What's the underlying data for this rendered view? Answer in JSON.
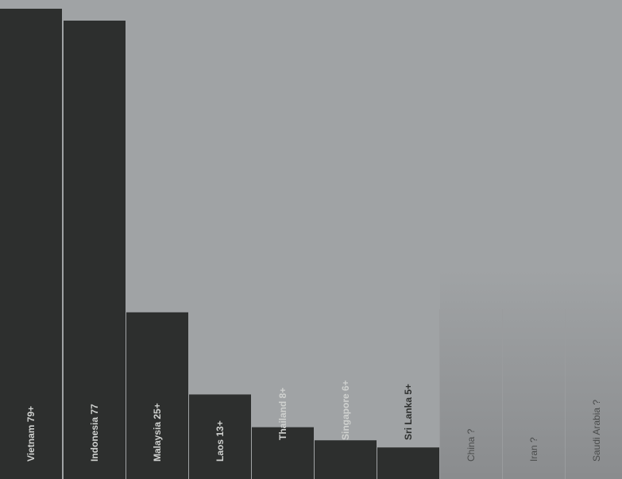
{
  "chart_data": {
    "type": "bar",
    "title": "",
    "xlabel": "",
    "ylabel": "",
    "ylim": [
      0,
      80
    ],
    "grid": false,
    "legend": "none",
    "bars": [
      {
        "country": "Vietnam",
        "label": "Vietnam 79+",
        "value": 79,
        "known": true
      },
      {
        "country": "Indonesia",
        "label": "Indonesia 77",
        "value": 77,
        "known": true
      },
      {
        "country": "Malaysia",
        "label": "Malaysia 25+",
        "value": 28,
        "known": true
      },
      {
        "country": "Laos",
        "label": "Laos  13+",
        "value": 14.2,
        "known": true
      },
      {
        "country": "Thailand",
        "label": "Thailand  8+",
        "value": 8.7,
        "known": true
      },
      {
        "country": "Singapore",
        "label": "Singapore 6+",
        "value": 6.5,
        "known": true
      },
      {
        "country": "Sri Lanka",
        "label": "Sri Lanka  5+",
        "value": 5.3,
        "known": true
      },
      {
        "country": "China",
        "label": "China  ?",
        "value": null,
        "known": false
      },
      {
        "country": "Iran",
        "label": "Iran ?",
        "value": null,
        "known": false
      },
      {
        "country": "Saudi Arabia",
        "label": "Saudi Arabia ?",
        "value": null,
        "known": false
      }
    ]
  },
  "colors": {
    "background": "#a0a3a5",
    "bar": "#2d2f2e",
    "known_label": "#cfd1cf",
    "unknown_label": "#4a4c4c",
    "unknown_fade_top": "#a0a3a5",
    "unknown_fade_bottom": "#8a8c8e"
  }
}
